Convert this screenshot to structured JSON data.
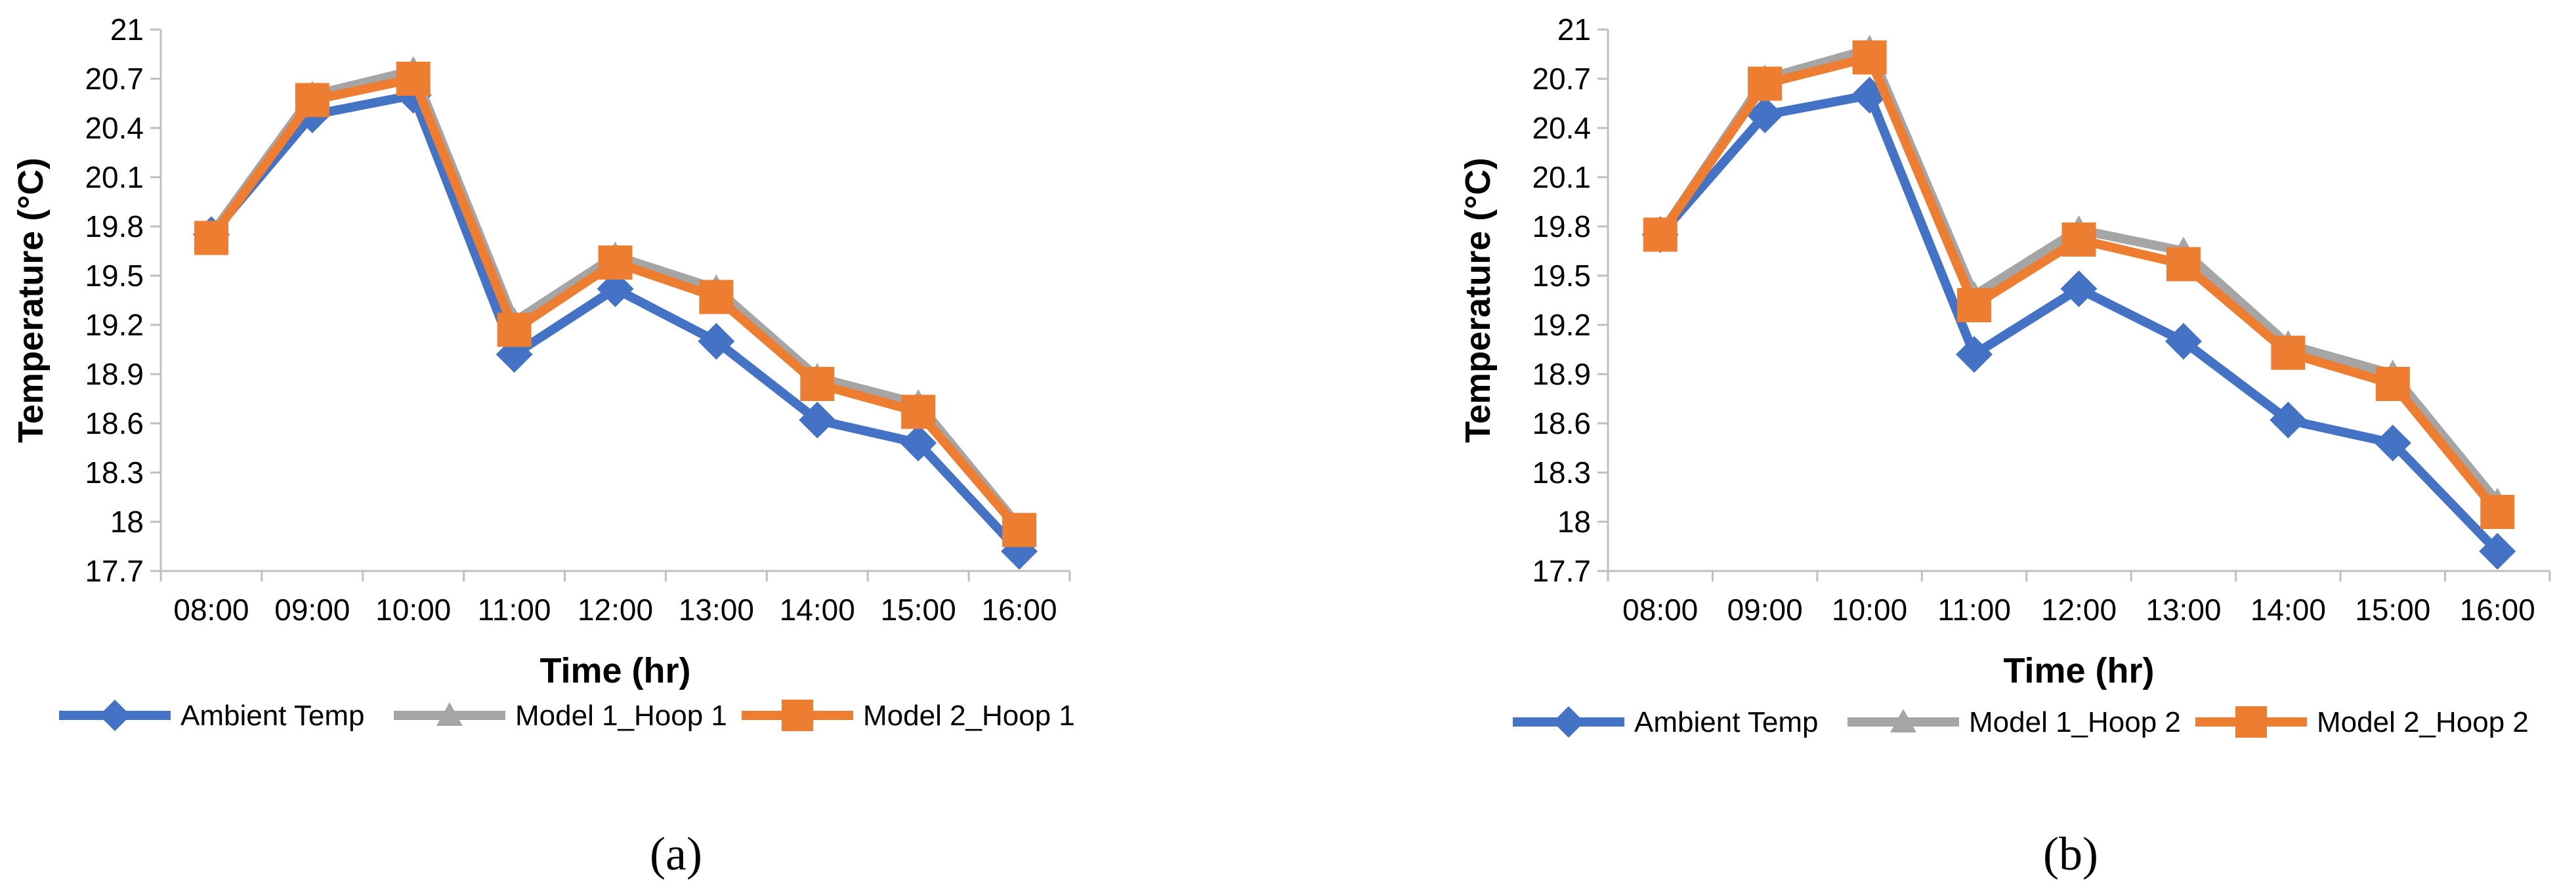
{
  "chart_data": [
    {
      "type": "line",
      "panel_label": "(a)",
      "categories": [
        "08:00",
        "09:00",
        "10:00",
        "11:00",
        "12:00",
        "13:00",
        "14:00",
        "15:00",
        "16:00"
      ],
      "xlabel": "Time (hr)",
      "ylabel": "Temperature (°C)",
      "ylim": [
        17.7,
        21
      ],
      "yticks": [
        "17.7",
        "18",
        "18.3",
        "18.6",
        "18.9",
        "19.2",
        "19.5",
        "19.8",
        "20.1",
        "20.4",
        "20.7",
        "21"
      ],
      "legend_position": "bottom",
      "grid": false,
      "series": [
        {
          "name": "Ambient Temp",
          "color": "#4472C4",
          "marker": "diamond",
          "values": [
            19.75,
            20.48,
            20.6,
            19.02,
            19.42,
            19.1,
            18.62,
            18.48,
            17.82
          ]
        },
        {
          "name": "Model 1_Hoop 1",
          "color": "#A5A5A5",
          "marker": "triangle",
          "values": [
            19.75,
            20.6,
            20.75,
            19.22,
            19.62,
            19.42,
            18.88,
            18.72,
            17.97
          ]
        },
        {
          "name": "Model 2_Hoop 1",
          "color": "#ED7D31",
          "marker": "square",
          "values": [
            19.73,
            20.57,
            20.7,
            19.17,
            19.58,
            19.37,
            18.84,
            18.67,
            17.95
          ]
        }
      ]
    },
    {
      "type": "line",
      "panel_label": "(b)",
      "categories": [
        "08:00",
        "09:00",
        "10:00",
        "11:00",
        "12:00",
        "13:00",
        "14:00",
        "15:00",
        "16:00"
      ],
      "xlabel": "Time (hr)",
      "ylabel": "Temperature (°C)",
      "ylim": [
        17.7,
        21
      ],
      "yticks": [
        "17.7",
        "18",
        "18.3",
        "18.6",
        "18.9",
        "19.2",
        "19.5",
        "19.8",
        "20.1",
        "20.4",
        "20.7",
        "21"
      ],
      "legend_position": "bottom",
      "grid": false,
      "series": [
        {
          "name": "Ambient Temp",
          "color": "#4472C4",
          "marker": "diamond",
          "values": [
            19.75,
            20.48,
            20.6,
            19.02,
            19.42,
            19.1,
            18.62,
            18.48,
            17.82
          ]
        },
        {
          "name": "Model 1_Hoop 2",
          "color": "#A5A5A5",
          "marker": "triangle",
          "values": [
            19.75,
            20.7,
            20.88,
            19.38,
            19.78,
            19.65,
            19.08,
            18.9,
            18.12
          ]
        },
        {
          "name": "Model 2_Hoop 2",
          "color": "#ED7D31",
          "marker": "square",
          "values": [
            19.75,
            20.67,
            20.83,
            19.32,
            19.72,
            19.57,
            19.03,
            18.84,
            18.06
          ]
        }
      ]
    }
  ]
}
